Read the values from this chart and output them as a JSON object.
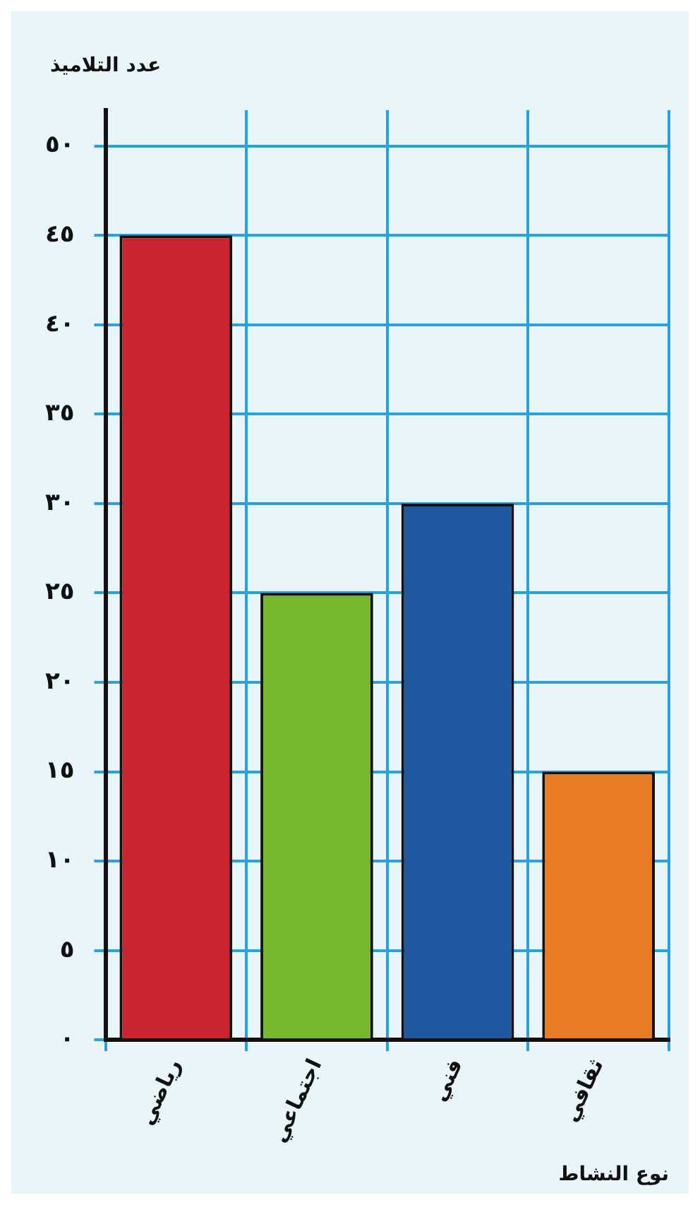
{
  "chart_data": {
    "type": "bar",
    "xlabel": "نوع النشاط",
    "ylabel": "عدد التلاميذ",
    "categories": [
      "رياضي",
      "اجتماعي",
      "فني",
      "ثقافي"
    ],
    "values": [
      45,
      25,
      30,
      15
    ],
    "colors": [
      "#c8242f",
      "#77b72e",
      "#1f5aa0",
      "#e87b25"
    ],
    "ylim": [
      0,
      52
    ],
    "yticks": [
      {
        "value": 0,
        "label": "٠"
      },
      {
        "value": 5,
        "label": "٥"
      },
      {
        "value": 10,
        "label": "١٠"
      },
      {
        "value": 15,
        "label": "١٥"
      },
      {
        "value": 20,
        "label": "٢٠"
      },
      {
        "value": 25,
        "label": "٢٥"
      },
      {
        "value": 30,
        "label": "٣٠"
      },
      {
        "value": 35,
        "label": "٣٥"
      },
      {
        "value": 40,
        "label": "٤٠"
      },
      {
        "value": 45,
        "label": "٤٥"
      },
      {
        "value": 50,
        "label": "٥٠"
      }
    ],
    "grid": true,
    "legend": false
  }
}
